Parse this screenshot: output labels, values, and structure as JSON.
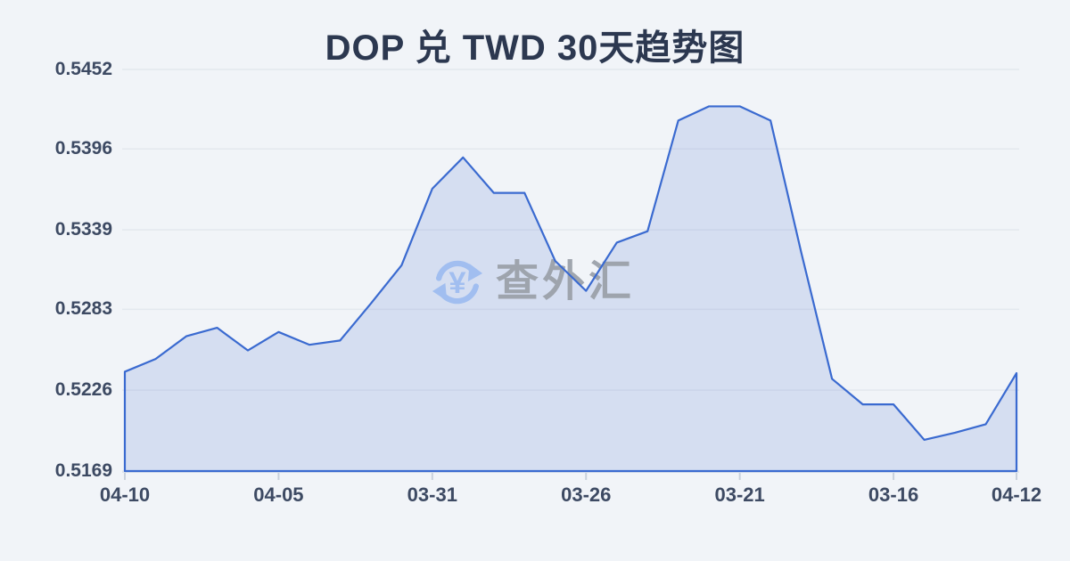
{
  "chart": {
    "title": "DOP 兑 TWD 30天趋势图"
  },
  "watermark": {
    "text": "查外汇",
    "icon": "currency-exchange-icon",
    "icon_color": "#9dbcf0"
  },
  "chart_data": {
    "type": "area",
    "title": "DOP 兑 TWD 30天趋势图",
    "series_name": "DOP/TWD",
    "x_tick_labels": [
      "04-10",
      "04-05",
      "03-31",
      "03-26",
      "03-21",
      "03-16",
      "04-12"
    ],
    "x_tick_indices": [
      0,
      5,
      10,
      15,
      20,
      25,
      29
    ],
    "y_tick_labels": [
      "0.5452",
      "0.5396",
      "0.5339",
      "0.5283",
      "0.5226",
      "0.5169"
    ],
    "y_ticks": [
      0.5452,
      0.5396,
      0.5339,
      0.5283,
      0.5226,
      0.5169
    ],
    "ylim": [
      0.5169,
      0.5452
    ],
    "values": [
      0.5239,
      0.5248,
      0.5264,
      0.527,
      0.5254,
      0.5267,
      0.5258,
      0.5261,
      0.5287,
      0.5314,
      0.5368,
      0.539,
      0.5365,
      0.5365,
      0.5317,
      0.5296,
      0.533,
      0.5338,
      0.5416,
      0.5426,
      0.5426,
      0.5416,
      0.5323,
      0.5234,
      0.5216,
      0.5216,
      0.5191,
      0.5196,
      0.5202,
      0.5238
    ],
    "grid": true,
    "legend": "none",
    "colors": {
      "line": "#3a6ad0",
      "fill": "rgba(88, 124, 208, 0.18)",
      "gridline": "#e3e8ee",
      "tick": "#c9d1dc",
      "axis_extension": "#dde3eb"
    }
  }
}
